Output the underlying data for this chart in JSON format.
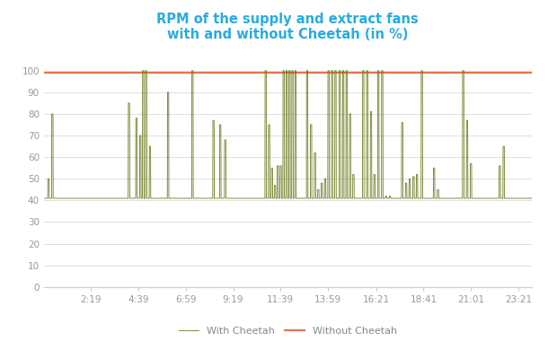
{
  "title": "RPM of the supply and extract fans\nwith and without Cheetah (in %)",
  "title_color": "#29abe2",
  "line_color_cheetah": "#6b7a1e",
  "line_color_without": "#e8734a",
  "without_cheetah_value": 99,
  "ylim": [
    0,
    110
  ],
  "yticks": [
    0,
    10,
    20,
    30,
    40,
    50,
    60,
    70,
    80,
    90,
    100
  ],
  "x_tick_labels": [
    "2:19",
    "4:39",
    "6:59",
    "9:19",
    "11:39",
    "13:59",
    "16:21",
    "18:41",
    "21:01",
    "23:21"
  ],
  "legend_with": "With Cheetah",
  "legend_without": "Without Cheetah",
  "background_color": "#ffffff",
  "grid_color": "#d0d0d0",
  "base_value": 41,
  "spikes": [
    {
      "t": 0.01,
      "v": 50
    },
    {
      "t": 0.018,
      "v": 80
    },
    {
      "t": 0.175,
      "v": 85
    },
    {
      "t": 0.19,
      "v": 78
    },
    {
      "t": 0.198,
      "v": 70
    },
    {
      "t": 0.204,
      "v": 100
    },
    {
      "t": 0.21,
      "v": 100
    },
    {
      "t": 0.218,
      "v": 65
    },
    {
      "t": 0.255,
      "v": 90
    },
    {
      "t": 0.305,
      "v": 100
    },
    {
      "t": 0.348,
      "v": 77
    },
    {
      "t": 0.362,
      "v": 75
    },
    {
      "t": 0.372,
      "v": 68
    },
    {
      "t": 0.455,
      "v": 100
    },
    {
      "t": 0.462,
      "v": 75
    },
    {
      "t": 0.468,
      "v": 55
    },
    {
      "t": 0.474,
      "v": 47
    },
    {
      "t": 0.48,
      "v": 56
    },
    {
      "t": 0.486,
      "v": 56
    },
    {
      "t": 0.492,
      "v": 100
    },
    {
      "t": 0.498,
      "v": 100
    },
    {
      "t": 0.504,
      "v": 100
    },
    {
      "t": 0.51,
      "v": 100
    },
    {
      "t": 0.516,
      "v": 100
    },
    {
      "t": 0.54,
      "v": 100
    },
    {
      "t": 0.548,
      "v": 75
    },
    {
      "t": 0.556,
      "v": 62
    },
    {
      "t": 0.563,
      "v": 45
    },
    {
      "t": 0.57,
      "v": 48
    },
    {
      "t": 0.577,
      "v": 50
    },
    {
      "t": 0.584,
      "v": 100
    },
    {
      "t": 0.591,
      "v": 100
    },
    {
      "t": 0.598,
      "v": 100
    },
    {
      "t": 0.607,
      "v": 100
    },
    {
      "t": 0.614,
      "v": 100
    },
    {
      "t": 0.621,
      "v": 100
    },
    {
      "t": 0.628,
      "v": 80
    },
    {
      "t": 0.635,
      "v": 52
    },
    {
      "t": 0.642,
      "v": 41
    },
    {
      "t": 0.655,
      "v": 100
    },
    {
      "t": 0.663,
      "v": 100
    },
    {
      "t": 0.671,
      "v": 81
    },
    {
      "t": 0.678,
      "v": 52
    },
    {
      "t": 0.686,
      "v": 100
    },
    {
      "t": 0.694,
      "v": 100
    },
    {
      "t": 0.702,
      "v": 42
    },
    {
      "t": 0.71,
      "v": 42
    },
    {
      "t": 0.735,
      "v": 76
    },
    {
      "t": 0.743,
      "v": 48
    },
    {
      "t": 0.75,
      "v": 50
    },
    {
      "t": 0.758,
      "v": 51
    },
    {
      "t": 0.765,
      "v": 52
    },
    {
      "t": 0.775,
      "v": 100
    },
    {
      "t": 0.8,
      "v": 55
    },
    {
      "t": 0.808,
      "v": 45
    },
    {
      "t": 0.86,
      "v": 100
    },
    {
      "t": 0.868,
      "v": 77
    },
    {
      "t": 0.876,
      "v": 57
    },
    {
      "t": 0.935,
      "v": 56
    },
    {
      "t": 0.943,
      "v": 65
    }
  ]
}
